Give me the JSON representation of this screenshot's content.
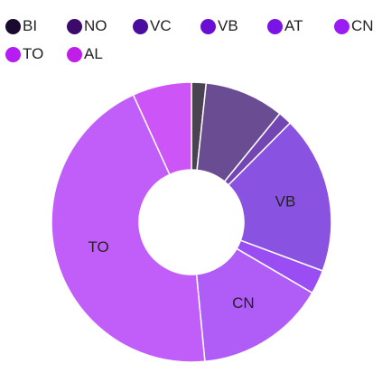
{
  "chart_data": {
    "type": "pie",
    "title": "",
    "legend_position": "top",
    "categories": [
      "BI",
      "NO",
      "VC",
      "VB",
      "AT",
      "CN",
      "TO",
      "AL"
    ],
    "series": [
      {
        "values": [
          1.7,
          9.3,
          1.6,
          18.4,
          2.8,
          15.2,
          45.2,
          6.9
        ],
        "colors": [
          "#1a0a2e",
          "#3b0a6b",
          "#4b0d9e",
          "#6a0fd1",
          "#7a14e6",
          "#9b1cf2",
          "#b51df2",
          "#c01ee8"
        ]
      }
    ],
    "slices": [
      {
        "label": "BI",
        "value": 1.7,
        "color": "#4a4352",
        "show_label": false
      },
      {
        "label": "NO",
        "value": 9.3,
        "color": "#6a4c93",
        "show_label": false
      },
      {
        "label": "VC",
        "value": 1.6,
        "color": "#7346b4",
        "show_label": false
      },
      {
        "label": "VB",
        "value": 18.4,
        "color": "#8a52e0",
        "show_label": true
      },
      {
        "label": "AT",
        "value": 2.8,
        "color": "#9a4df2",
        "show_label": false
      },
      {
        "label": "CN",
        "value": 15.2,
        "color": "#b05cf7",
        "show_label": true
      },
      {
        "label": "TO",
        "value": 45.2,
        "color": "#c15efa",
        "show_label": true
      },
      {
        "label": "AL",
        "value": 6.9,
        "color": "#cd55f8",
        "show_label": false
      }
    ],
    "legend": [
      {
        "label": "BI",
        "color": "#1a0a2e"
      },
      {
        "label": "NO",
        "color": "#3b0a6b"
      },
      {
        "label": "VC",
        "color": "#4b0d9e"
      },
      {
        "label": "VB",
        "color": "#6a0fd1"
      },
      {
        "label": "AT",
        "color": "#7a14e6"
      },
      {
        "label": "CN",
        "color": "#9b1cf2"
      },
      {
        "label": "TO",
        "color": "#b51df2"
      },
      {
        "label": "AL",
        "color": "#c01ee8"
      }
    ]
  }
}
